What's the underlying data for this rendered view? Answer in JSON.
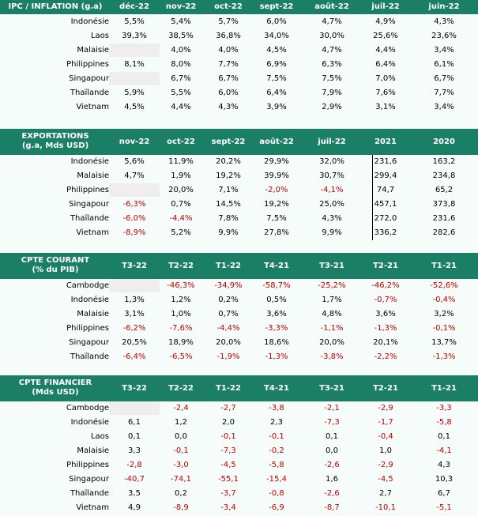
{
  "sections": [
    {
      "title": [
        "IPC / INFLATION (g.a)"
      ],
      "columns": [
        "déc-22",
        "nov-22",
        "oct-22",
        "sept-22",
        "août-22",
        "juil-22",
        "juin-22"
      ],
      "rows": [
        {
          "label": "Indonésie",
          "values": [
            "5,5%",
            "5,4%",
            "5,7%",
            "6,0%",
            "4,7%",
            "4,9%",
            "4,3%"
          ]
        },
        {
          "label": "Laos",
          "values": [
            "39,3%",
            "38,5%",
            "36,8%",
            "34,0%",
            "30,0%",
            "25,6%",
            "23,6%"
          ]
        },
        {
          "label": "Malaisie",
          "values": [
            "",
            "4,0%",
            "4,0%",
            "4,5%",
            "4,7%",
            "4,4%",
            "3,4%"
          ]
        },
        {
          "label": "Philippines",
          "values": [
            "8,1%",
            "8,0%",
            "7,7%",
            "6,9%",
            "6,3%",
            "6,4%",
            "6,1%"
          ]
        },
        {
          "label": "Singapour",
          "values": [
            "",
            "6,7%",
            "6,7%",
            "7,5%",
            "7,5%",
            "7,0%",
            "6,7%"
          ]
        },
        {
          "label": "Thaïlande",
          "values": [
            "5,9%",
            "5,5%",
            "6,0%",
            "6,4%",
            "7,9%",
            "7,6%",
            "7,7%"
          ]
        },
        {
          "label": "Vietnam",
          "values": [
            "4,5%",
            "4,4%",
            "4,3%",
            "3,9%",
            "2,9%",
            "3,1%",
            "3,4%"
          ]
        }
      ]
    },
    {
      "title": [
        "EXPORTATIONS",
        "(g.a, Mds USD)"
      ],
      "columns": [
        "nov-22",
        "oct-22",
        "sept-22",
        "août-22",
        "juil-22",
        "2021",
        "2020"
      ],
      "rows": [
        {
          "label": "Indonésie",
          "values": [
            "5,6%",
            "11,9%",
            "20,2%",
            "29,9%",
            "32,0%",
            "231,6",
            "163,2"
          ]
        },
        {
          "label": "Malaisie",
          "values": [
            "4,7%",
            "1,9%",
            "19,2%",
            "39,9%",
            "30,7%",
            "299,4",
            "234,8"
          ]
        },
        {
          "label": "Philippines",
          "values": [
            "",
            "20,0%",
            "7,1%",
            "-2,0%",
            "-4,1%",
            "74,7",
            "65,2"
          ]
        },
        {
          "label": "Singapour",
          "values": [
            "-6,3%",
            "0,7%",
            "14,5%",
            "19,2%",
            "25,0%",
            "457,1",
            "373,8"
          ]
        },
        {
          "label": "Thaïlande",
          "values": [
            "-6,0%",
            "-4,4%",
            "7,8%",
            "7,5%",
            "4,3%",
            "272,0",
            "231,6"
          ]
        },
        {
          "label": "Vietnam",
          "values": [
            "-8,9%",
            "5,2%",
            "9,9%",
            "27,8%",
            "9,9%",
            "336,2",
            "282,6"
          ]
        }
      ]
    },
    {
      "title": [
        "CPTE COURANT",
        "(% du PIB)"
      ],
      "columns": [
        "T3-22",
        "T2-22",
        "T1-22",
        "T4-21",
        "T3-21",
        "T2-21",
        "T1-21"
      ],
      "rows": [
        {
          "label": "Cambodge",
          "values": [
            "",
            "-46,3%",
            "-34,9%",
            "-58,7%",
            "-25,2%",
            "-46,2%",
            "-52,6%"
          ]
        },
        {
          "label": "Indonésie",
          "values": [
            "1,3%",
            "1,2%",
            "0,2%",
            "0,5%",
            "1,7%",
            "-0,7%",
            "-0,4%"
          ]
        },
        {
          "label": "Malaisie",
          "values": [
            "3,1%",
            "1,0%",
            "0,7%",
            "3,6%",
            "4,8%",
            "3,6%",
            "3,2%"
          ]
        },
        {
          "label": "Philippines",
          "values": [
            "-6,2%",
            "-7,6%",
            "-4,4%",
            "-3,3%",
            "-1,1%",
            "-1,3%",
            "-0,1%"
          ]
        },
        {
          "label": "Singapour",
          "values": [
            "20,5%",
            "18,9%",
            "20,0%",
            "18,6%",
            "20,0%",
            "20,1%",
            "13,7%"
          ]
        },
        {
          "label": "Thaïlande",
          "values": [
            "-6,4%",
            "-6,5%",
            "-1,9%",
            "-1,3%",
            "-3,8%",
            "-2,2%",
            "-1,3%"
          ]
        }
      ]
    },
    {
      "title": [
        "CPTE FINANCIER",
        "(Mds USD)"
      ],
      "columns": [
        "T3-22",
        "T2-22",
        "T1-22",
        "T4-21",
        "T3-21",
        "T2-21",
        "T1-21"
      ],
      "rows": [
        {
          "label": "Cambodge",
          "values": [
            "",
            "-2,4",
            "-2,7",
            "-3,8",
            "-2,1",
            "-2,9",
            "-3,3"
          ]
        },
        {
          "label": "Indonésie",
          "values": [
            "6,1",
            "1,2",
            "2,0",
            "2,3",
            "-7,3",
            "-1,7",
            "-5,8"
          ]
        },
        {
          "label": "Laos",
          "values": [
            "0,1",
            "0,0",
            "-0,1",
            "-0,1",
            "0,1",
            "-0,4",
            "0,1"
          ]
        },
        {
          "label": "Malaisie",
          "values": [
            "3,3",
            "-0,1",
            "-7,3",
            "-0,2",
            "0,0",
            "1,0",
            "-4,1"
          ]
        },
        {
          "label": "Philippines",
          "values": [
            "-2,8",
            "-3,0",
            "-4,5",
            "-5,8",
            "-2,6",
            "-2,9",
            "4,3"
          ]
        },
        {
          "label": "Singapour",
          "values": [
            "-40,7",
            "-74,1",
            "-55,1",
            "-15,4",
            "1,6",
            "-4,5",
            "10,3"
          ]
        },
        {
          "label": "Thaïlande",
          "values": [
            "3,5",
            "0,2",
            "-3,7",
            "-0,8",
            "-2,6",
            "2,7",
            "6,7"
          ]
        },
        {
          "label": "Vietnam",
          "values": [
            "4,9",
            "-8,9",
            "-3,4",
            "-6,9",
            "-8,7",
            "-10,1",
            "-5,1"
          ]
        }
      ]
    }
  ],
  "colors": {
    "header_bg": "#1a7f64",
    "negative": "#c00000",
    "row_bg": "#f5fcfa"
  }
}
